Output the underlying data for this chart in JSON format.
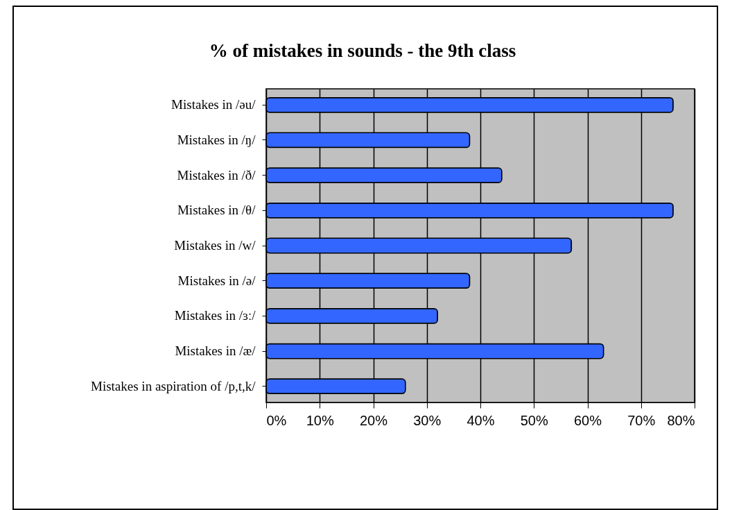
{
  "chart_data": {
    "type": "bar",
    "orientation": "horizontal",
    "title": "% of mistakes in sounds - the 9th class",
    "categories": [
      "Mistakes in /əu/",
      "Mistakes in /ŋ/",
      "Mistakes in /ð/",
      "Mistakes in /θ/",
      "Mistakes in /w/",
      "Mistakes in /ə/",
      "Mistakes in /ɜː/",
      "Mistakes in /æ/",
      "Mistakes in aspiration of /p,t,k/"
    ],
    "values": [
      76,
      38,
      44,
      76,
      57,
      38,
      32,
      63,
      26
    ],
    "color": "#3366ff",
    "xlim": [
      0,
      80
    ],
    "xticks": [
      {
        "value": 0,
        "label": "0%"
      },
      {
        "value": 10,
        "label": "10%"
      },
      {
        "value": 20,
        "label": "20%"
      },
      {
        "value": 30,
        "label": "30%"
      },
      {
        "value": 40,
        "label": "40%"
      },
      {
        "value": 50,
        "label": "50%"
      },
      {
        "value": 60,
        "label": "60%"
      },
      {
        "value": 70,
        "label": "70%"
      },
      {
        "value": 80,
        "label": "80%"
      }
    ],
    "grid": "x"
  }
}
